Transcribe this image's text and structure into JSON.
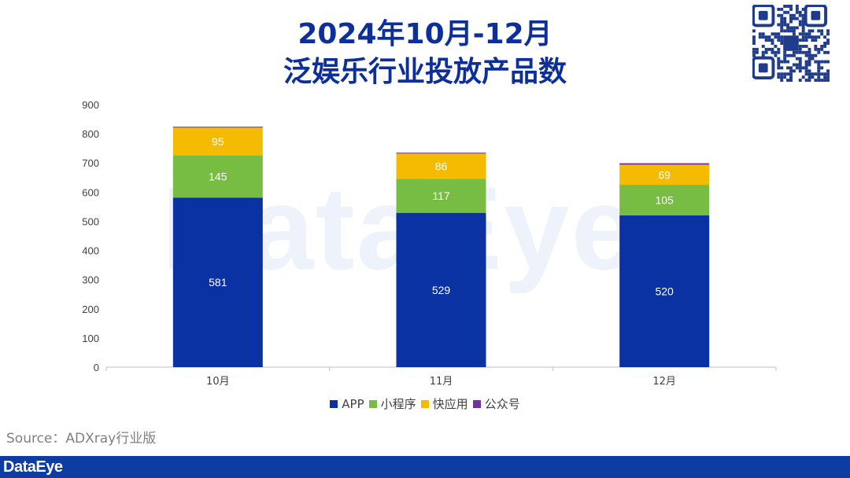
{
  "title_line1": "2024年10月-12月",
  "title_line2": "泛娱乐行业投放产品数",
  "watermark": "DataEye",
  "source": "Source：ADXray行业版",
  "footer_brand": "DataEye",
  "colors": {
    "APP": "#0a32a3",
    "小程序": "#77bd44",
    "快应用": "#f5bb00",
    "公众号": "#7030a0",
    "title": "#0c2f9b",
    "footer": "#0d3ca2"
  },
  "chart_data": {
    "type": "bar",
    "stacked": true,
    "categories": [
      "10月",
      "11月",
      "12月"
    ],
    "series": [
      {
        "name": "APP",
        "values": [
          581,
          529,
          520
        ]
      },
      {
        "name": "小程序",
        "values": [
          145,
          117,
          105
        ]
      },
      {
        "name": "快应用",
        "values": [
          95,
          86,
          69
        ]
      },
      {
        "name": "公众号",
        "values": [
          3,
          3,
          5
        ]
      }
    ],
    "data_labels": [
      {
        "series": "APP",
        "labels": [
          "581",
          "529",
          "520"
        ]
      },
      {
        "series": "小程序",
        "labels": [
          "145",
          "117",
          "105"
        ]
      },
      {
        "series": "快应用",
        "labels": [
          "95",
          "86",
          "69"
        ]
      }
    ],
    "ylim": [
      0,
      900
    ],
    "yticks": [
      0,
      100,
      200,
      300,
      400,
      500,
      600,
      700,
      800,
      900
    ],
    "legend": "bottom",
    "grid": false
  }
}
